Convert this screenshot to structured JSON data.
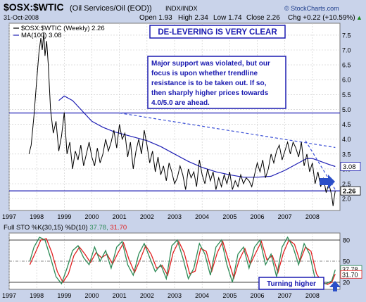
{
  "header": {
    "symbol": "$OSX:$WTIC",
    "description": "(Oil Services/Oil (EOD))",
    "exchange": "INDX/INDX",
    "date": "31-Oct-2008",
    "open": "Open 1.93",
    "high": "High 2.34",
    "low": "Low 1.74",
    "close": "Close 2.26",
    "chg": "Chg +0.22 (+10.59%)",
    "chg_arrow": "▲",
    "watermark": "© StockCharts.com"
  },
  "legend": {
    "main_label": "$OSX:$WTIC (Weekly) 2.26",
    "ma_label": "MA(100) 3.08",
    "sto_label": "Full STO %K(30,15) %D(10) 37.78, 31.70"
  },
  "annotations": {
    "title": "DE-LEVERING IS VERY CLEAR",
    "note": [
      "Major support was violated, but our",
      "focus is upon whether trendline",
      "resistance is to be taken out. If so,",
      "then sharply higher prices towards",
      "4.0/5.0 are ahead."
    ],
    "turning": "Turning higher"
  },
  "colors": {
    "price": "#000000",
    "ma": "#1f1fb4",
    "stoK": "#2e8b57",
    "stoD": "#e02020",
    "hline": "#1f1fb4",
    "trend": "#3a4fd6",
    "annotation_border": "#1a1ab0",
    "annotation_text": "#1a1ab0",
    "arrow": "#2b4fc8",
    "bg_outer": "#c9d3ea",
    "panel_bg": "#ffffff",
    "grid": "#c8c8c8"
  },
  "chart_data": [
    {
      "type": "line",
      "ylim": [
        1.6,
        7.9
      ],
      "y_ticks": [
        2.0,
        2.5,
        3.0,
        3.5,
        4.0,
        4.5,
        5.0,
        5.5,
        6.0,
        6.5,
        7.0,
        7.5
      ],
      "x_ticks": [
        "1997",
        "1998",
        "1999",
        "2000",
        "2001",
        "2002",
        "2003",
        "2004",
        "2005",
        "2006",
        "2007",
        "2008"
      ],
      "last_price_label": "2.26",
      "ma_value_label": "3.08",
      "grid": true,
      "series": [
        {
          "name": "$OSX:$WTIC (Weekly)",
          "x": [
            1997.72,
            1997.8,
            1997.9,
            1998.0,
            1998.08,
            1998.15,
            1998.2,
            1998.26,
            1998.3,
            1998.36,
            1998.42,
            1998.5,
            1998.6,
            1998.7,
            1998.8,
            1998.9,
            1999.0,
            1999.1,
            1999.2,
            1999.3,
            1999.4,
            1999.5,
            1999.6,
            1999.7,
            1999.8,
            1999.9,
            2000.0,
            2000.1,
            2000.2,
            2000.3,
            2000.4,
            2000.5,
            2000.6,
            2000.7,
            2000.8,
            2000.9,
            2001.0,
            2001.1,
            2001.2,
            2001.3,
            2001.4,
            2001.5,
            2001.6,
            2001.7,
            2001.8,
            2001.9,
            2002.0,
            2002.1,
            2002.2,
            2002.3,
            2002.4,
            2002.5,
            2002.6,
            2002.7,
            2002.8,
            2002.9,
            2003.0,
            2003.1,
            2003.2,
            2003.3,
            2003.4,
            2003.5,
            2003.6,
            2003.7,
            2003.8,
            2003.9,
            2004.0,
            2004.1,
            2004.2,
            2004.3,
            2004.4,
            2004.5,
            2004.6,
            2004.7,
            2004.8,
            2004.9,
            2005.0,
            2005.1,
            2005.2,
            2005.3,
            2005.4,
            2005.5,
            2005.6,
            2005.7,
            2005.8,
            2005.9,
            2006.0,
            2006.1,
            2006.2,
            2006.3,
            2006.4,
            2006.5,
            2006.6,
            2006.7,
            2006.8,
            2006.9,
            2007.0,
            2007.1,
            2007.2,
            2007.3,
            2007.4,
            2007.5,
            2007.6,
            2007.7,
            2007.8,
            2007.9,
            2008.0,
            2008.1,
            2008.2,
            2008.3,
            2008.4,
            2008.5,
            2008.6,
            2008.7,
            2008.75,
            2008.8,
            2008.83
          ],
          "values": [
            3.5,
            3.8,
            4.8,
            6.0,
            6.9,
            7.4,
            7.0,
            7.6,
            6.8,
            7.3,
            6.5,
            5.0,
            4.2,
            4.6,
            3.6,
            4.1,
            4.9,
            3.5,
            3.9,
            3.0,
            3.6,
            3.3,
            3.8,
            3.1,
            3.5,
            3.9,
            3.4,
            3.1,
            3.7,
            3.2,
            3.5,
            4.0,
            3.6,
            3.9,
            4.3,
            3.7,
            4.5,
            4.0,
            4.2,
            3.4,
            3.9,
            3.0,
            3.6,
            4.0,
            3.5,
            4.3,
            3.8,
            3.2,
            3.6,
            2.9,
            3.4,
            2.8,
            3.1,
            2.6,
            3.2,
            2.9,
            2.5,
            2.7,
            3.1,
            2.8,
            2.3,
            3.0,
            2.7,
            2.9,
            2.4,
            3.3,
            2.8,
            2.5,
            3.0,
            2.6,
            2.9,
            2.3,
            2.7,
            2.4,
            2.8,
            2.5,
            2.9,
            2.3,
            2.6,
            2.4,
            2.8,
            2.5,
            2.7,
            2.6,
            2.4,
            2.8,
            3.2,
            2.9,
            3.3,
            2.7,
            3.0,
            3.5,
            3.2,
            3.6,
            3.8,
            3.3,
            3.6,
            3.9,
            3.5,
            3.9,
            3.7,
            3.4,
            3.9,
            3.1,
            3.5,
            2.9,
            3.2,
            2.5,
            2.9,
            2.4,
            2.7,
            2.2,
            2.5,
            2.1,
            1.75,
            2.1,
            2.26
          ]
        },
        {
          "name": "MA(100)",
          "x": [
            1998.8,
            1999.0,
            1999.3,
            1999.6,
            2000.0,
            2000.4,
            2000.8,
            2001.2,
            2001.6,
            2002.0,
            2002.5,
            2003.0,
            2003.5,
            2004.0,
            2004.5,
            2005.0,
            2005.5,
            2006.0,
            2006.5,
            2007.0,
            2007.5,
            2007.8,
            2008.0,
            2008.3,
            2008.6,
            2008.83
          ],
          "values": [
            5.3,
            5.45,
            5.3,
            5.0,
            4.6,
            4.4,
            4.25,
            4.15,
            4.05,
            3.95,
            3.75,
            3.5,
            3.25,
            3.05,
            2.9,
            2.8,
            2.72,
            2.72,
            2.75,
            2.95,
            3.2,
            3.35,
            3.35,
            3.25,
            3.15,
            3.08
          ]
        }
      ],
      "horizontal_lines": [
        4.88,
        2.26
      ],
      "trendlines": [
        {
          "x": [
            2001.0,
            2008.83
          ],
          "values": [
            4.88,
            3.72
          ]
        },
        {
          "x": [
            2007.75,
            2008.83
          ],
          "values": [
            3.95,
            2.3
          ]
        }
      ]
    },
    {
      "type": "line",
      "ylim": [
        10,
        90
      ],
      "y_ticks": [
        20,
        50,
        80
      ],
      "levels": [
        20,
        80
      ],
      "x_ticks": [
        "1997",
        "1998",
        "1999",
        "2000",
        "2001",
        "2002",
        "2003",
        "2004",
        "2005",
        "2006",
        "2007",
        "2008"
      ],
      "k_label": "37.78",
      "d_label": "31.70",
      "series": [
        {
          "name": "%K(30,15)",
          "x": [
            1997.75,
            1997.9,
            1998.1,
            1998.3,
            1998.5,
            1998.7,
            1998.9,
            1999.1,
            1999.3,
            1999.5,
            1999.7,
            1999.9,
            2000.1,
            2000.3,
            2000.5,
            2000.7,
            2000.9,
            2001.1,
            2001.3,
            2001.5,
            2001.7,
            2001.9,
            2002.1,
            2002.3,
            2002.5,
            2002.7,
            2002.9,
            2003.1,
            2003.3,
            2003.5,
            2003.7,
            2003.9,
            2004.1,
            2004.3,
            2004.5,
            2004.7,
            2004.9,
            2005.1,
            2005.3,
            2005.5,
            2005.7,
            2005.9,
            2006.1,
            2006.3,
            2006.5,
            2006.7,
            2006.9,
            2007.1,
            2007.3,
            2007.5,
            2007.7,
            2007.9,
            2008.1,
            2008.3,
            2008.5,
            2008.7,
            2008.83
          ],
          "values": [
            50,
            70,
            84,
            80,
            55,
            28,
            18,
            40,
            65,
            72,
            55,
            45,
            70,
            50,
            65,
            40,
            70,
            78,
            45,
            30,
            60,
            75,
            55,
            35,
            45,
            25,
            72,
            80,
            55,
            25,
            40,
            75,
            60,
            30,
            70,
            80,
            45,
            20,
            60,
            70,
            40,
            70,
            80,
            45,
            60,
            28,
            70,
            84,
            70,
            45,
            75,
            60,
            25,
            18,
            18,
            22,
            37.78
          ]
        },
        {
          "name": "%D(10)",
          "x": [
            1997.75,
            1997.95,
            1998.15,
            1998.35,
            1998.55,
            1998.75,
            1998.95,
            1999.15,
            1999.35,
            1999.55,
            1999.75,
            1999.95,
            2000.15,
            2000.35,
            2000.55,
            2000.75,
            2000.95,
            2001.15,
            2001.35,
            2001.55,
            2001.75,
            2001.95,
            2002.15,
            2002.35,
            2002.55,
            2002.75,
            2002.95,
            2003.15,
            2003.35,
            2003.55,
            2003.75,
            2003.95,
            2004.15,
            2004.35,
            2004.55,
            2004.75,
            2004.95,
            2005.15,
            2005.35,
            2005.55,
            2005.75,
            2005.95,
            2006.15,
            2006.35,
            2006.55,
            2006.75,
            2006.95,
            2007.15,
            2007.35,
            2007.55,
            2007.75,
            2007.95,
            2008.15,
            2008.35,
            2008.55,
            2008.7,
            2008.83
          ],
          "values": [
            45,
            62,
            80,
            82,
            62,
            35,
            20,
            32,
            58,
            70,
            60,
            48,
            62,
            55,
            60,
            46,
            62,
            76,
            52,
            34,
            52,
            72,
            60,
            40,
            44,
            30,
            62,
            78,
            62,
            32,
            36,
            68,
            64,
            36,
            62,
            78,
            52,
            26,
            52,
            68,
            46,
            62,
            78,
            52,
            58,
            34,
            62,
            80,
            74,
            50,
            70,
            64,
            32,
            20,
            17,
            20,
            31.7
          ]
        }
      ]
    }
  ]
}
